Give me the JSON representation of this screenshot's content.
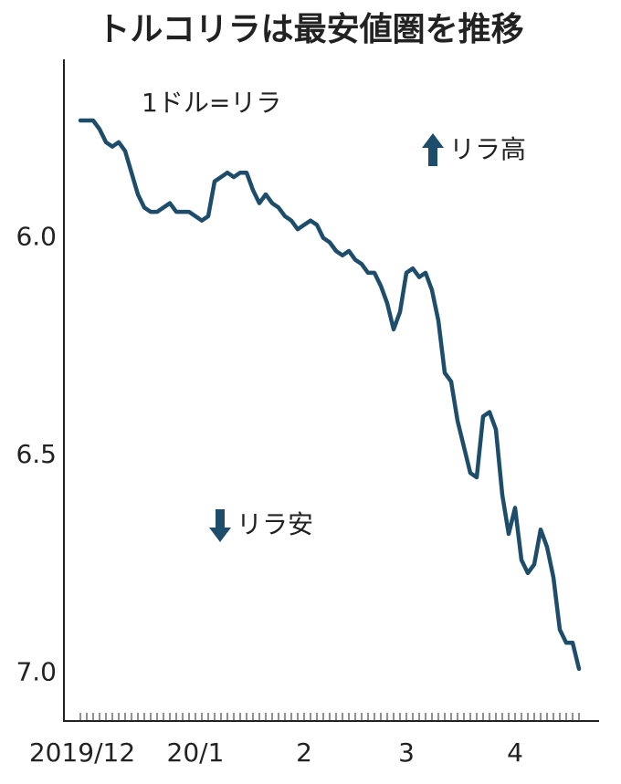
{
  "chart_data": {
    "type": "line",
    "title": "トルコリラは最安値圏を推移",
    "unit_label": "1ドル=リラ",
    "annotations": [
      "リラ高",
      "リラ安"
    ],
    "categories": [
      "2019/12",
      null,
      null,
      null,
      null,
      null,
      null,
      null,
      null,
      null,
      null,
      null,
      null,
      null,
      null,
      null,
      null,
      null,
      "20/1",
      null,
      null,
      null,
      null,
      null,
      null,
      null,
      null,
      null,
      null,
      null,
      null,
      null,
      null,
      null,
      null,
      "2",
      null,
      null,
      null,
      null,
      null,
      null,
      null,
      null,
      null,
      null,
      null,
      null,
      null,
      null,
      null,
      "3",
      null,
      null,
      null,
      null,
      null,
      null,
      null,
      null,
      null,
      null,
      null,
      null,
      null,
      null,
      null,
      null,
      "4",
      null,
      null,
      null,
      null,
      null,
      null,
      null,
      null,
      null,
      null
    ],
    "series": [
      {
        "color": "#1d4d6a",
        "values": [
          5.73,
          5.73,
          5.73,
          5.75,
          5.78,
          5.79,
          5.78,
          5.8,
          5.85,
          5.9,
          5.93,
          5.94,
          5.94,
          5.93,
          5.92,
          5.94,
          5.94,
          5.94,
          5.95,
          5.96,
          5.95,
          5.87,
          5.86,
          5.85,
          5.86,
          5.85,
          5.85,
          5.89,
          5.92,
          5.9,
          5.92,
          5.93,
          5.95,
          5.96,
          5.98,
          5.97,
          5.96,
          5.97,
          6.0,
          6.01,
          6.03,
          6.04,
          6.03,
          6.05,
          6.06,
          6.08,
          6.08,
          6.11,
          6.15,
          6.21,
          6.17,
          6.08,
          6.07,
          6.09,
          6.08,
          6.12,
          6.19,
          6.31,
          6.33,
          6.42,
          6.48,
          6.54,
          6.55,
          6.41,
          6.4,
          6.44,
          6.59,
          6.68,
          6.62,
          6.74,
          6.77,
          6.75,
          6.67,
          6.71,
          6.78,
          6.9,
          6.93,
          6.93,
          6.99
        ]
      }
    ],
    "ylim": [
      5.6,
      7.11
    ],
    "y_inverted": true,
    "yticks": [
      {
        "value": 6,
        "label": "6.0"
      },
      {
        "value": 6.5,
        "label": "6.5"
      },
      {
        "value": 7,
        "label": "7.0"
      }
    ]
  }
}
